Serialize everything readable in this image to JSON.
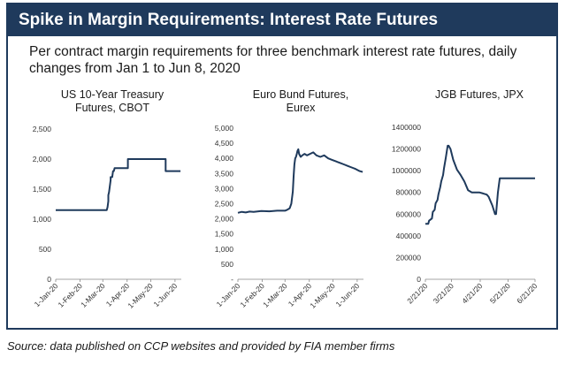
{
  "header": {
    "title": "Spike in Margin Requirements: Interest Rate Futures",
    "subtitle": "Per contract margin requirements for three benchmark interest rate futures, daily changes from Jan 1 to Jun 8, 2020"
  },
  "source": "Source: data published on CCP websites and provided by FIA member firms",
  "colors": {
    "banner": "#1f3a5c",
    "line": "#1f3a5c"
  },
  "chart_data": [
    {
      "type": "line",
      "title": "US 10-Year Treasury Futures, CBOT",
      "title_lines": [
        "US 10-Year Treasury",
        "Futures, CBOT"
      ],
      "xlim": [
        0,
        160
      ],
      "ylim": [
        0,
        2500
      ],
      "yticks": [
        0,
        500,
        1000,
        1500,
        2000,
        2500
      ],
      "ytick_labels": [
        "0",
        "500",
        "1,000",
        "1,500",
        "2,000",
        "2,500"
      ],
      "xticks": [
        0,
        31,
        60,
        91,
        121,
        152
      ],
      "xtick_labels": [
        "1-Jan-20",
        "1-Feb-20",
        "1-Mar-20",
        "1-Apr-20",
        "1-May-20",
        "1-Jun-20"
      ],
      "series": [
        {
          "x": [
            0,
            65,
            66,
            67,
            67,
            68,
            69,
            70,
            70,
            72,
            73,
            74,
            75,
            75,
            92,
            92,
            99,
            99,
            140,
            140,
            152,
            152,
            159
          ],
          "y": [
            1150,
            1150,
            1200,
            1300,
            1400,
            1450,
            1550,
            1650,
            1700,
            1700,
            1800,
            1800,
            1850,
            1850,
            1850,
            2000,
            2000,
            2000,
            2000,
            1800,
            1800,
            1800,
            1800
          ]
        }
      ]
    },
    {
      "type": "line",
      "title": "Euro Bund Futures, Eurex",
      "title_lines": [
        "Euro Bund Futures,",
        "Eurex"
      ],
      "xlim": [
        0,
        160
      ],
      "ylim": [
        0,
        5000
      ],
      "yticks": [
        0,
        500,
        1000,
        1500,
        2000,
        2500,
        3000,
        3500,
        4000,
        4500,
        5000
      ],
      "ytick_labels": [
        "-",
        "500",
        "1,000",
        "1,500",
        "2,000",
        "2,500",
        "3,000",
        "3,500",
        "4,000",
        "4,500",
        "5,000"
      ],
      "xticks": [
        0,
        31,
        60,
        91,
        121,
        152
      ],
      "xtick_labels": [
        "1-Jan-20",
        "1-Feb-20",
        "1-Mar-20",
        "1-Apr-20",
        "1-May-20",
        "1-Jun-20"
      ],
      "series": [
        {
          "x": [
            0,
            5,
            10,
            15,
            20,
            30,
            40,
            50,
            60,
            63,
            66,
            68,
            70,
            71,
            72,
            73,
            74,
            75,
            76,
            77,
            78,
            80,
            82,
            85,
            88,
            92,
            96,
            100,
            105,
            110,
            115,
            120,
            125,
            130,
            135,
            140,
            145,
            150,
            155,
            159
          ],
          "y": [
            2200,
            2230,
            2210,
            2240,
            2230,
            2260,
            2250,
            2270,
            2270,
            2300,
            2350,
            2500,
            2900,
            3400,
            3800,
            4000,
            4050,
            4150,
            4250,
            4300,
            4150,
            4050,
            4100,
            4150,
            4100,
            4150,
            4200,
            4100,
            4050,
            4100,
            4000,
            3950,
            3900,
            3850,
            3800,
            3750,
            3700,
            3650,
            3580,
            3550
          ]
        }
      ]
    },
    {
      "type": "line",
      "title": "JGB Futures, JPX",
      "title_lines": [
        "JGB Futures, JPX"
      ],
      "xlim": [
        0,
        118
      ],
      "ylim": [
        0,
        1400000
      ],
      "yticks": [
        0,
        200000,
        400000,
        600000,
        800000,
        1000000,
        1200000,
        1400000
      ],
      "ytick_labels": [
        "0",
        "200000",
        "400000",
        "600000",
        "800000",
        "1000000",
        "1200000",
        "1400000"
      ],
      "xticks": [
        0,
        28,
        59,
        89,
        120
      ],
      "xtick_labels": [
        "2/21/20",
        "3/21/20",
        "4/21/20",
        "5/21/20",
        "6/21/20"
      ],
      "series": [
        {
          "x": [
            0,
            3,
            4,
            7,
            8,
            10,
            11,
            13,
            14,
            16,
            17,
            19,
            20,
            22,
            24,
            25,
            27,
            30,
            34,
            38,
            42,
            46,
            50,
            54,
            58,
            62,
            66,
            68,
            72,
            75,
            76,
            78,
            80,
            84,
            90,
            100,
            110,
            118
          ],
          "y": [
            510000,
            510000,
            540000,
            560000,
            620000,
            640000,
            700000,
            730000,
            780000,
            850000,
            900000,
            960000,
            1020000,
            1120000,
            1230000,
            1230000,
            1200000,
            1100000,
            1010000,
            960000,
            900000,
            820000,
            800000,
            800000,
            800000,
            790000,
            780000,
            760000,
            680000,
            600000,
            600000,
            800000,
            930000,
            930000,
            930000,
            930000,
            930000,
            930000
          ]
        }
      ]
    }
  ]
}
